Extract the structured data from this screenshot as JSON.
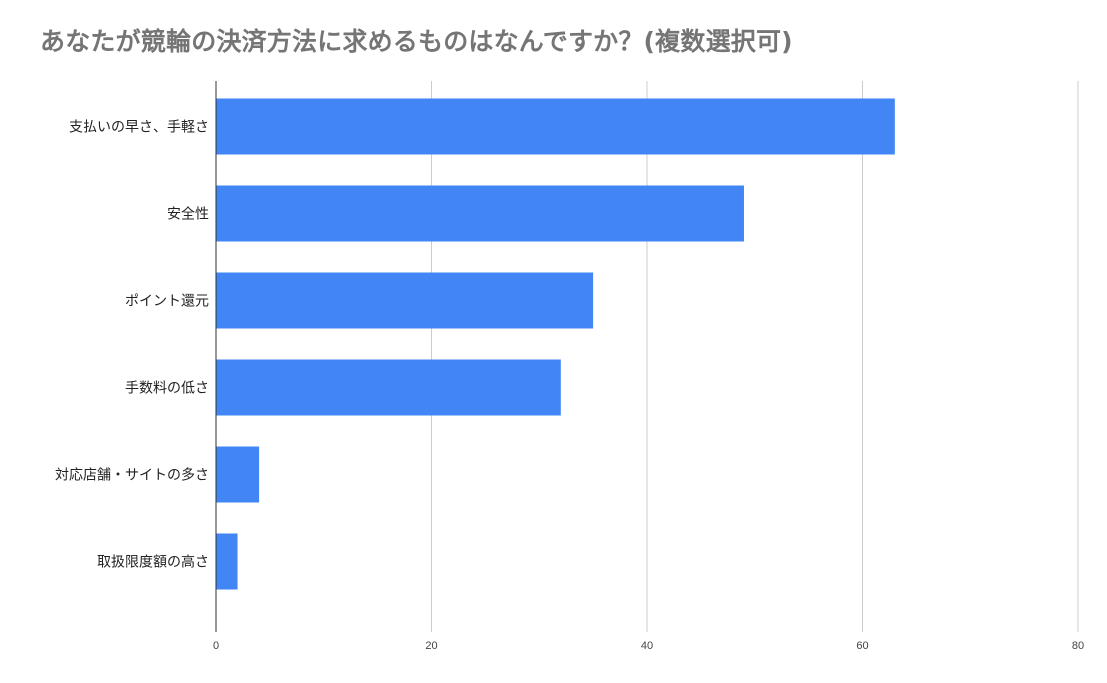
{
  "chart_data": {
    "type": "bar",
    "orientation": "horizontal",
    "title": "あなたが競輪の決済方法に求めるものはなんですか？(複数選択可)",
    "categories": [
      "支払いの早さ、手軽さ",
      "安全性",
      "ポイント還元",
      "手数料の低さ",
      "対応店舗・サイトの多さ",
      "取扱限度額の高さ"
    ],
    "values": [
      63,
      49,
      35,
      32,
      4,
      2
    ],
    "xlim": [
      0,
      80
    ],
    "xticks": [
      "0",
      "20",
      "40",
      "60",
      "80"
    ],
    "grid": "vertical",
    "bar_color": "#4285f4",
    "grid_color": "#cccccc",
    "axis_color": "#333333"
  }
}
